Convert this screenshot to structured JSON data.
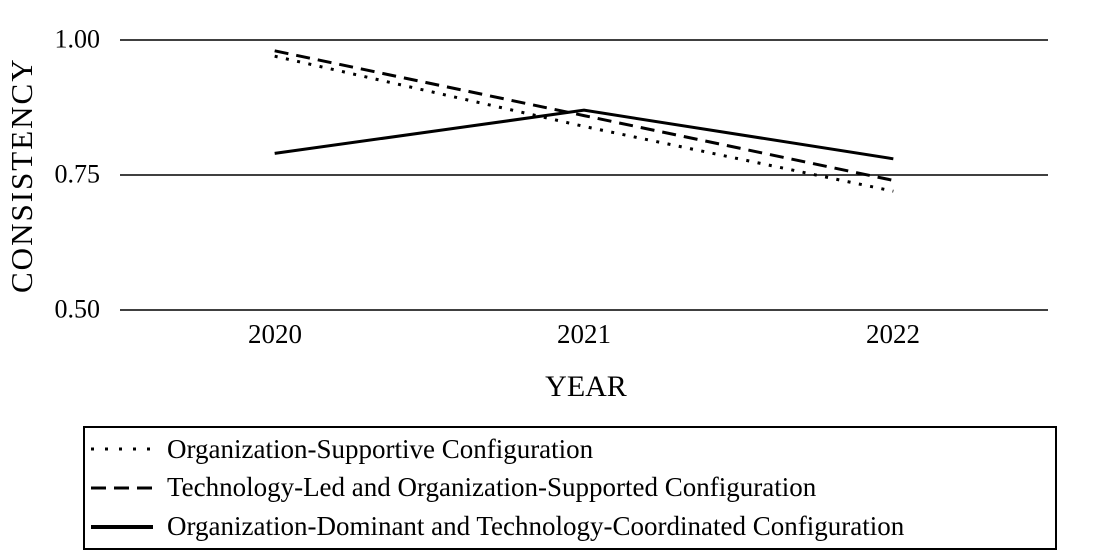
{
  "chart_data": {
    "type": "line",
    "xlabel": "YEAR",
    "ylabel": "CONSISTENCY",
    "x_categories": [
      "2020",
      "2021",
      "2022"
    ],
    "ylim": [
      0.5,
      1.0
    ],
    "yticks": [
      {
        "label": "1.00",
        "value": 1.0
      },
      {
        "label": "0.75",
        "value": 0.75
      },
      {
        "label": "0.50",
        "value": 0.5
      }
    ],
    "grid": "horizontal-only",
    "legend_position": "bottom",
    "colors": {
      "line": "#000000",
      "background": "#ffffff",
      "text": "#000000"
    },
    "series": [
      {
        "name": "Organization-Supportive Configuration",
        "line_style": "dotted",
        "values": [
          0.97,
          0.84,
          0.72
        ]
      },
      {
        "name": "Technology-Led and Organization-Supported Configuration",
        "line_style": "dashed",
        "values": [
          0.98,
          0.86,
          0.74
        ]
      },
      {
        "name": "Organization-Dominant and Technology-Coordinated Configuration",
        "line_style": "solid",
        "values": [
          0.79,
          0.87,
          0.78
        ]
      }
    ]
  }
}
